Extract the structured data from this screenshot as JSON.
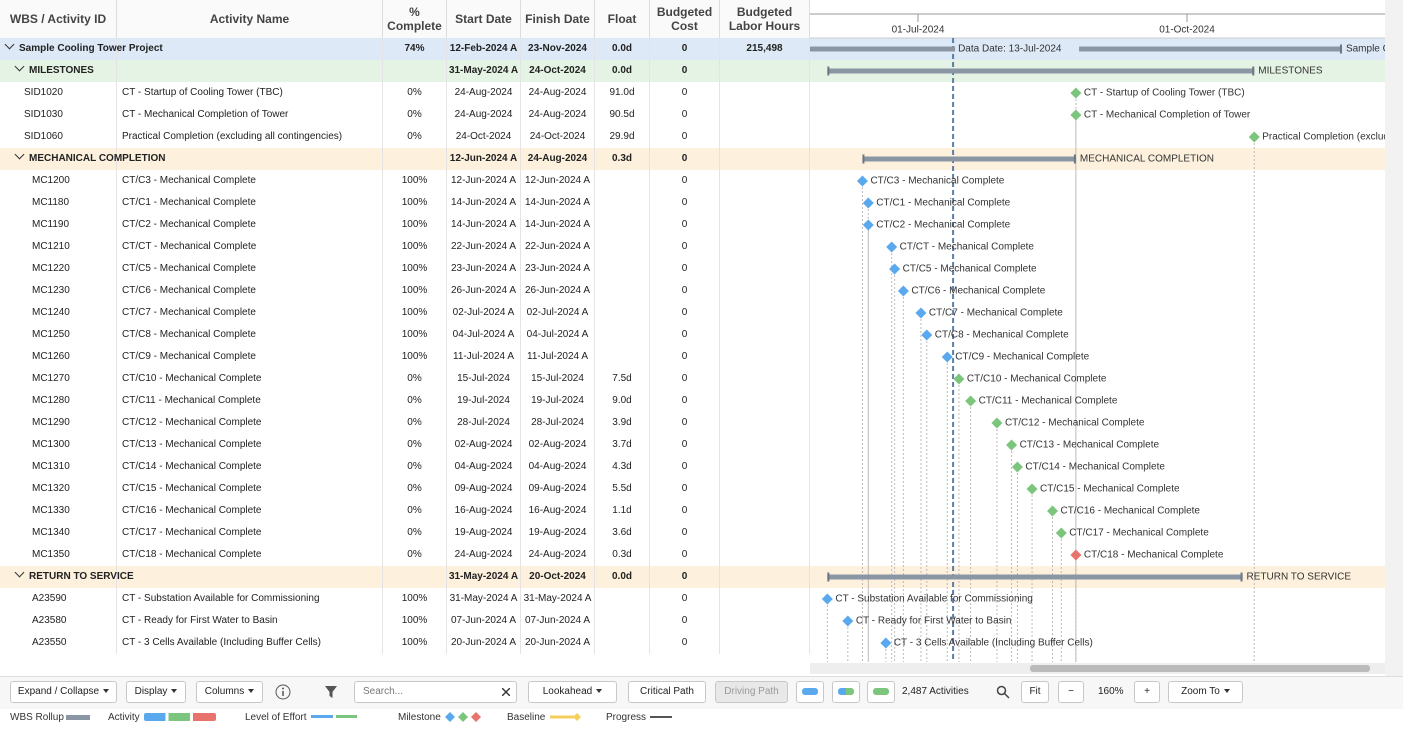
{
  "columns": [
    "WBS / Activity ID",
    "Activity Name",
    "% Complete",
    "Start Date",
    "Finish Date",
    "Float",
    "Budgeted Cost",
    "Budgeted Labor Hours"
  ],
  "timeline": {
    "ticks": [
      "01-Jul-2024",
      "01-Oct-2024"
    ],
    "data_date": "Data Date: 13-Jul-2024"
  },
  "rows": [
    {
      "kind": "project",
      "color": "#dde9f6",
      "id": "Sample Cooling Tower Project",
      "pct": "74%",
      "start": "12-Feb-2024 A",
      "finish": "23-Nov-2024",
      "float": "0.0d",
      "cost": "0",
      "hours": "215,498"
    },
    {
      "kind": "wbs",
      "color": "#e4f3e4",
      "id": "MILESTONES",
      "start": "31-May-2024 A",
      "finish": "24-Oct-2024",
      "float": "0.0d",
      "cost": "0"
    },
    {
      "kind": "activity",
      "color": "#7cc57c",
      "id": "SID1020",
      "name": "CT - Startup of Cooling Tower (TBC)",
      "pct": "0%",
      "start": "24-Aug-2024",
      "finish": "24-Aug-2024",
      "float": "91.0d",
      "cost": "0"
    },
    {
      "kind": "activity",
      "color": "#7cc57c",
      "id": "SID1030",
      "name": "CT - Mechanical Completion of Tower",
      "pct": "0%",
      "start": "24-Aug-2024",
      "finish": "24-Aug-2024",
      "float": "90.5d",
      "cost": "0"
    },
    {
      "kind": "activity",
      "color": "#7cc57c",
      "id": "SID1060",
      "name": "Practical Completion (excluding all contingencies)",
      "pct": "0%",
      "start": "24-Oct-2024",
      "finish": "24-Oct-2024",
      "float": "29.9d",
      "cost": "0"
    },
    {
      "kind": "wbs",
      "color": "#fdf1de",
      "id": "MECHANICAL COMPLETION",
      "start": "12-Jun-2024 A",
      "finish": "24-Aug-2024",
      "float": "0.3d",
      "cost": "0"
    },
    {
      "kind": "activity",
      "color": "#5aa9ee",
      "id": "MC1200",
      "name": "CT/C3 - Mechanical Complete",
      "pct": "100%",
      "start": "12-Jun-2024 A",
      "finish": "12-Jun-2024 A",
      "cost": "0"
    },
    {
      "kind": "activity",
      "color": "#5aa9ee",
      "id": "MC1180",
      "name": "CT/C1 - Mechanical Complete",
      "pct": "100%",
      "start": "14-Jun-2024 A",
      "finish": "14-Jun-2024 A",
      "cost": "0"
    },
    {
      "kind": "activity",
      "color": "#5aa9ee",
      "id": "MC1190",
      "name": "CT/C2 - Mechanical Complete",
      "pct": "100%",
      "start": "14-Jun-2024 A",
      "finish": "14-Jun-2024 A",
      "cost": "0"
    },
    {
      "kind": "activity",
      "color": "#5aa9ee",
      "id": "MC1210",
      "name": "CT/CT - Mechanical Complete",
      "pct": "100%",
      "start": "22-Jun-2024 A",
      "finish": "22-Jun-2024 A",
      "cost": "0"
    },
    {
      "kind": "activity",
      "color": "#5aa9ee",
      "id": "MC1220",
      "name": "CT/C5 - Mechanical Complete",
      "pct": "100%",
      "start": "23-Jun-2024 A",
      "finish": "23-Jun-2024 A",
      "cost": "0"
    },
    {
      "kind": "activity",
      "color": "#5aa9ee",
      "id": "MC1230",
      "name": "CT/C6 - Mechanical Complete",
      "pct": "100%",
      "start": "26-Jun-2024 A",
      "finish": "26-Jun-2024 A",
      "cost": "0"
    },
    {
      "kind": "activity",
      "color": "#5aa9ee",
      "id": "MC1240",
      "name": "CT/C7 - Mechanical Complete",
      "pct": "100%",
      "start": "02-Jul-2024 A",
      "finish": "02-Jul-2024 A",
      "cost": "0"
    },
    {
      "kind": "activity",
      "color": "#5aa9ee",
      "id": "MC1250",
      "name": "CT/C8 - Mechanical Complete",
      "pct": "100%",
      "start": "04-Jul-2024 A",
      "finish": "04-Jul-2024 A",
      "cost": "0"
    },
    {
      "kind": "activity",
      "color": "#5aa9ee",
      "id": "MC1260",
      "name": "CT/C9 - Mechanical Complete",
      "pct": "100%",
      "start": "11-Jul-2024 A",
      "finish": "11-Jul-2024 A",
      "cost": "0"
    },
    {
      "kind": "activity",
      "color": "#7cc57c",
      "id": "MC1270",
      "name": "CT/C10 - Mechanical Complete",
      "pct": "0%",
      "start": "15-Jul-2024",
      "finish": "15-Jul-2024",
      "float": "7.5d",
      "cost": "0"
    },
    {
      "kind": "activity",
      "color": "#7cc57c",
      "id": "MC1280",
      "name": "CT/C11 - Mechanical Complete",
      "pct": "0%",
      "start": "19-Jul-2024",
      "finish": "19-Jul-2024",
      "float": "9.0d",
      "cost": "0"
    },
    {
      "kind": "activity",
      "color": "#7cc57c",
      "id": "MC1290",
      "name": "CT/C12 - Mechanical Complete",
      "pct": "0%",
      "start": "28-Jul-2024",
      "finish": "28-Jul-2024",
      "float": "3.9d",
      "cost": "0"
    },
    {
      "kind": "activity",
      "color": "#7cc57c",
      "id": "MC1300",
      "name": "CT/C13 - Mechanical Complete",
      "pct": "0%",
      "start": "02-Aug-2024",
      "finish": "02-Aug-2024",
      "float": "3.7d",
      "cost": "0"
    },
    {
      "kind": "activity",
      "color": "#7cc57c",
      "id": "MC1310",
      "name": "CT/C14 - Mechanical Complete",
      "pct": "0%",
      "start": "04-Aug-2024",
      "finish": "04-Aug-2024",
      "float": "4.3d",
      "cost": "0"
    },
    {
      "kind": "activity",
      "color": "#7cc57c",
      "id": "MC1320",
      "name": "CT/C15 - Mechanical Complete",
      "pct": "0%",
      "start": "09-Aug-2024",
      "finish": "09-Aug-2024",
      "float": "5.5d",
      "cost": "0"
    },
    {
      "kind": "activity",
      "color": "#7cc57c",
      "id": "MC1330",
      "name": "CT/C16 - Mechanical Complete",
      "pct": "0%",
      "start": "16-Aug-2024",
      "finish": "16-Aug-2024",
      "float": "1.1d",
      "cost": "0"
    },
    {
      "kind": "activity",
      "color": "#7cc57c",
      "id": "MC1340",
      "name": "CT/C17 - Mechanical Complete",
      "pct": "0%",
      "start": "19-Aug-2024",
      "finish": "19-Aug-2024",
      "float": "3.6d",
      "cost": "0"
    },
    {
      "kind": "activity",
      "color": "#e8736b",
      "id": "MC1350",
      "name": "CT/C18 - Mechanical Complete",
      "pct": "0%",
      "start": "24-Aug-2024",
      "finish": "24-Aug-2024",
      "float": "0.3d",
      "cost": "0"
    },
    {
      "kind": "wbs",
      "color": "#fdf1de",
      "id": "RETURN TO SERVICE",
      "start": "31-May-2024 A",
      "finish": "20-Oct-2024",
      "float": "0.0d",
      "cost": "0"
    },
    {
      "kind": "activity",
      "color": "#5aa9ee",
      "id": "A23590",
      "name": "CT - Substation Available for Commissioning",
      "pct": "100%",
      "start": "31-May-2024 A",
      "finish": "31-May-2024 A",
      "cost": "0"
    },
    {
      "kind": "activity",
      "color": "#5aa9ee",
      "id": "A23580",
      "name": "CT - Ready for First Water to Basin",
      "pct": "100%",
      "start": "07-Jun-2024 A",
      "finish": "07-Jun-2024 A",
      "cost": "0"
    },
    {
      "kind": "activity",
      "color": "#5aa9ee",
      "id": "A23550",
      "name": "CT - 3 Cells Available (Including Buffer Cells)",
      "pct": "100%",
      "start": "20-Jun-2024 A",
      "finish": "20-Jun-2024 A",
      "cost": "0"
    }
  ],
  "toolbar": {
    "expand": "Expand / Collapse",
    "display": "Display",
    "columns": "Columns",
    "search": "Search...",
    "lookahead": "Lookahead",
    "critical": "Critical Path",
    "driving": "Driving Path",
    "count": "2,487 Activities",
    "fit": "Fit",
    "minus": "−",
    "zoom": "160%",
    "plus": "+",
    "zoom_to": "Zoom To"
  },
  "legend": [
    "WBS Rollup",
    "Activity",
    "Level of Effort",
    "Milestone",
    "Baseline",
    "Progress"
  ]
}
